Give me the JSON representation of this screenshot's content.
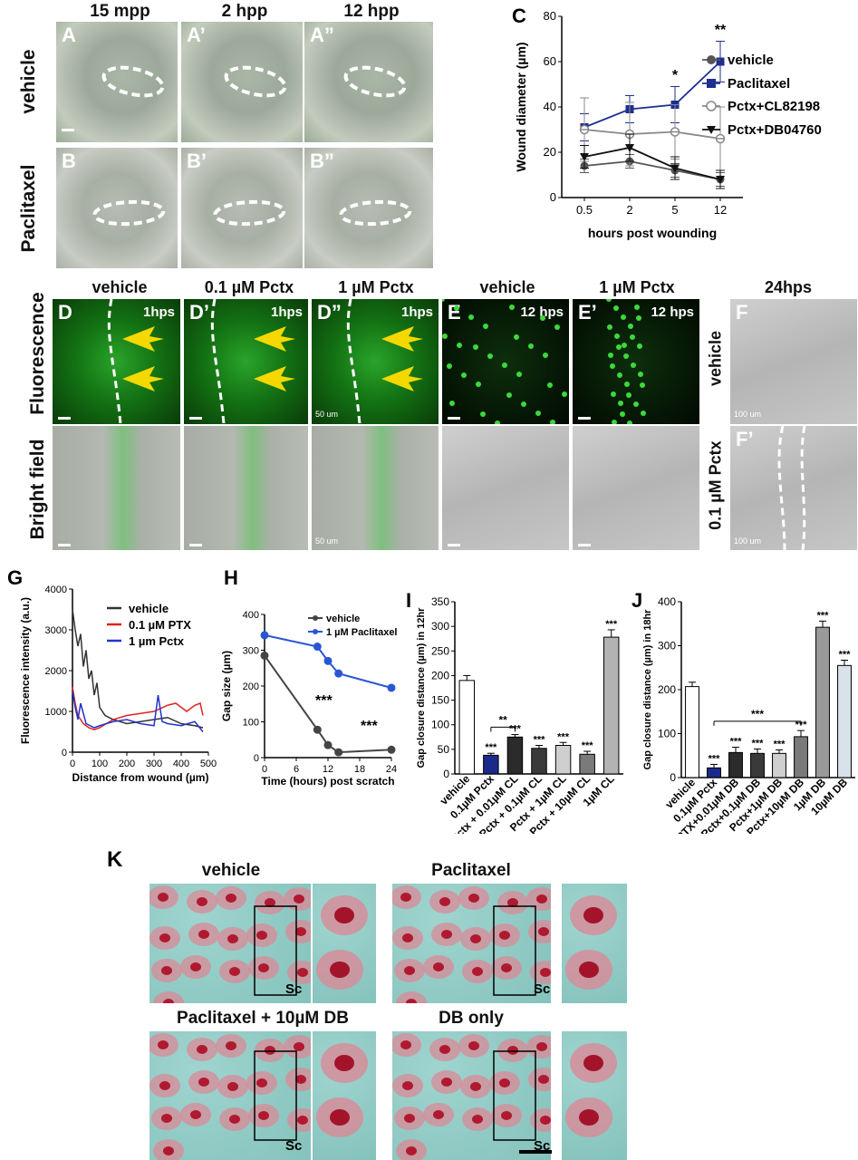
{
  "panel_A_B": {
    "col_titles": [
      "15 mpp",
      "2 hpp",
      "12 hpp"
    ],
    "row_titles": [
      "vehicle",
      "Paclitaxel"
    ],
    "letters": [
      "A",
      "A’",
      "A”",
      "B",
      "B’",
      "B”"
    ]
  },
  "panel_C": {
    "letter": "C",
    "chart_data": {
      "type": "line",
      "x": [
        "0.5",
        "2",
        "5",
        "12"
      ],
      "xlabel": "hours post wounding",
      "ylabel": "Wound diameter (µm)",
      "ylim": [
        0,
        80
      ],
      "yticks": [
        "0",
        "20",
        "40",
        "60",
        "80"
      ],
      "series": [
        {
          "name": "vehicle",
          "values": [
            14,
            16,
            12,
            8
          ],
          "errors": [
            3,
            3,
            3,
            3
          ],
          "color": "#555555"
        },
        {
          "name": "Paclitaxel",
          "values": [
            31,
            39,
            41,
            60
          ],
          "errors": [
            6,
            6,
            8,
            9
          ],
          "color": "#1f2f8f"
        },
        {
          "name": "Pctx+CL82198",
          "values": [
            30,
            28,
            29,
            26
          ],
          "errors": [
            14,
            14,
            12,
            14
          ],
          "color": "#888888"
        },
        {
          "name": "Pctx+DB04760",
          "values": [
            18,
            22,
            13,
            8
          ],
          "errors": [
            5,
            6,
            5,
            4
          ],
          "color": "#111111"
        }
      ],
      "annotations": [
        {
          "x": "5",
          "text": "*"
        },
        {
          "x": "12",
          "text": "**"
        }
      ]
    }
  },
  "panel_D_F": {
    "col_titles": [
      "vehicle",
      "0.1 µM Pctx",
      "1 µM Pctx",
      "vehicle",
      "1 µM Pctx",
      "24hps"
    ],
    "row_titles": [
      "Fluorescence",
      "Bright field"
    ],
    "letters": [
      "D",
      "D’",
      "D”",
      "E",
      "E’",
      "F",
      "F’"
    ],
    "time_tags": [
      "1hps",
      "1hps",
      "1hps",
      "12 hps",
      "12 hps"
    ],
    "scale_50": "50 um",
    "scale_100": "100 um",
    "F_row_labels": [
      "vehicle",
      "0.1 µM Pctx"
    ]
  },
  "panel_G": {
    "letter": "G",
    "chart_data": {
      "type": "line",
      "xlabel": "Distance from wound (µm)",
      "ylabel": "Fluorescence intensity (a.u.)",
      "xlim": [
        0,
        500
      ],
      "ylim": [
        0,
        4000
      ],
      "xticks": [
        "0",
        "100",
        "200",
        "300",
        "400",
        "500"
      ],
      "yticks": [
        "0",
        "1000",
        "2000",
        "3000",
        "4000"
      ],
      "series": [
        {
          "name": "vehicle",
          "color": "#333333",
          "x": [
            0,
            10,
            20,
            30,
            40,
            50,
            60,
            70,
            80,
            90,
            100,
            120,
            150,
            200,
            250,
            300,
            350,
            400,
            450,
            480
          ],
          "values": [
            3500,
            3000,
            2600,
            2900,
            2100,
            2500,
            1800,
            2000,
            1400,
            1700,
            1100,
            900,
            800,
            700,
            750,
            800,
            850,
            700,
            650,
            600
          ]
        },
        {
          "name": "0.1 µM PTX",
          "color": "#e0231f",
          "x": [
            0,
            10,
            20,
            40,
            60,
            80,
            100,
            150,
            200,
            250,
            300,
            350,
            380,
            400,
            420,
            450,
            470,
            480
          ],
          "values": [
            1600,
            1200,
            900,
            700,
            600,
            550,
            600,
            800,
            900,
            950,
            1000,
            1150,
            1200,
            1100,
            1000,
            1150,
            1200,
            900
          ]
        },
        {
          "name": "1 µm Pctx",
          "color": "#2233cc",
          "x": [
            0,
            10,
            20,
            30,
            50,
            80,
            100,
            150,
            200,
            250,
            300,
            315,
            330,
            350,
            400,
            450,
            480
          ],
          "values": [
            1500,
            1100,
            800,
            1200,
            700,
            600,
            650,
            750,
            800,
            700,
            650,
            1400,
            750,
            700,
            650,
            750,
            500
          ]
        }
      ]
    }
  },
  "panel_H": {
    "letter": "H",
    "chart_data": {
      "type": "line",
      "xlabel": "Time (hours) post scratch",
      "ylabel": "Gap size (µm)",
      "xlim": [
        0,
        24
      ],
      "ylim": [
        0,
        400
      ],
      "xticks": [
        "0",
        "6",
        "12",
        "18",
        "24"
      ],
      "yticks": [
        "0",
        "100",
        "200",
        "300",
        "400"
      ],
      "series": [
        {
          "name": "vehicle",
          "color": "#444444",
          "x": [
            0,
            10,
            12,
            14,
            24
          ],
          "values": [
            285,
            78,
            35,
            15,
            22
          ]
        },
        {
          "name": "1 µM Paclitaxel",
          "color": "#2a56d4",
          "x": [
            0,
            10,
            12,
            14,
            24
          ],
          "values": [
            342,
            310,
            270,
            235,
            195
          ]
        }
      ],
      "annotations": [
        "***",
        "***"
      ]
    }
  },
  "panel_I": {
    "letter": "I",
    "chart_data": {
      "type": "bar",
      "ylabel": "Gap closure distance (µm) in 12hr",
      "ylim": [
        0,
        350
      ],
      "yticks": [
        "0",
        "50",
        "100",
        "150",
        "200",
        "250",
        "300",
        "350"
      ],
      "categories": [
        "vehicle",
        "0.1µM Pctx",
        "Pctx + 0.01µM CL",
        "Pctx + 0.1µM CL",
        "Pctx + 1µM CL",
        "Pctx + 10µM CL",
        "1µM CL"
      ],
      "values": [
        190,
        38,
        75,
        52,
        58,
        40,
        278
      ],
      "errors": [
        10,
        4,
        5,
        6,
        6,
        6,
        15
      ],
      "colors": [
        "#ffffff",
        "#1b2a8a",
        "#2b2b2b",
        "#3a3a3a",
        "#cfcfcf",
        "#7a7a7a",
        "#b3b3b3"
      ],
      "stars": [
        "",
        "***",
        "***",
        "***",
        "***",
        "***",
        "***"
      ],
      "bracket": "**"
    }
  },
  "panel_J": {
    "letter": "J",
    "chart_data": {
      "type": "bar",
      "ylabel": "Gap closure distance (µm) in 18hr",
      "ylim": [
        0,
        400
      ],
      "yticks": [
        "0",
        "100",
        "200",
        "300",
        "400"
      ],
      "categories": [
        "vehicle",
        "0.1µM Pctx",
        "PTX+0.01µM DB",
        "Pctx+0.1µM DB",
        "Pctx+1µM DB",
        "Pctx+10µM DB",
        "1µM DB",
        "10µM DB"
      ],
      "values": [
        207,
        22,
        57,
        55,
        55,
        93,
        342,
        255
      ],
      "errors": [
        10,
        8,
        12,
        10,
        8,
        14,
        14,
        12
      ],
      "colors": [
        "#ffffff",
        "#1b2a8a",
        "#2b2b2b",
        "#3a3a3a",
        "#cfcfcf",
        "#7a7a7a",
        "#9a9a9a",
        "#d9e2ea"
      ],
      "stars": [
        "",
        "***",
        "***",
        "***",
        "***",
        "***",
        "***",
        "***"
      ],
      "bracket": "***"
    }
  },
  "panel_K": {
    "letter": "K",
    "titles": [
      "vehicle",
      "Paclitaxel",
      "Paclitaxel + 10µM DB",
      "DB only"
    ],
    "sc": "Sc"
  }
}
